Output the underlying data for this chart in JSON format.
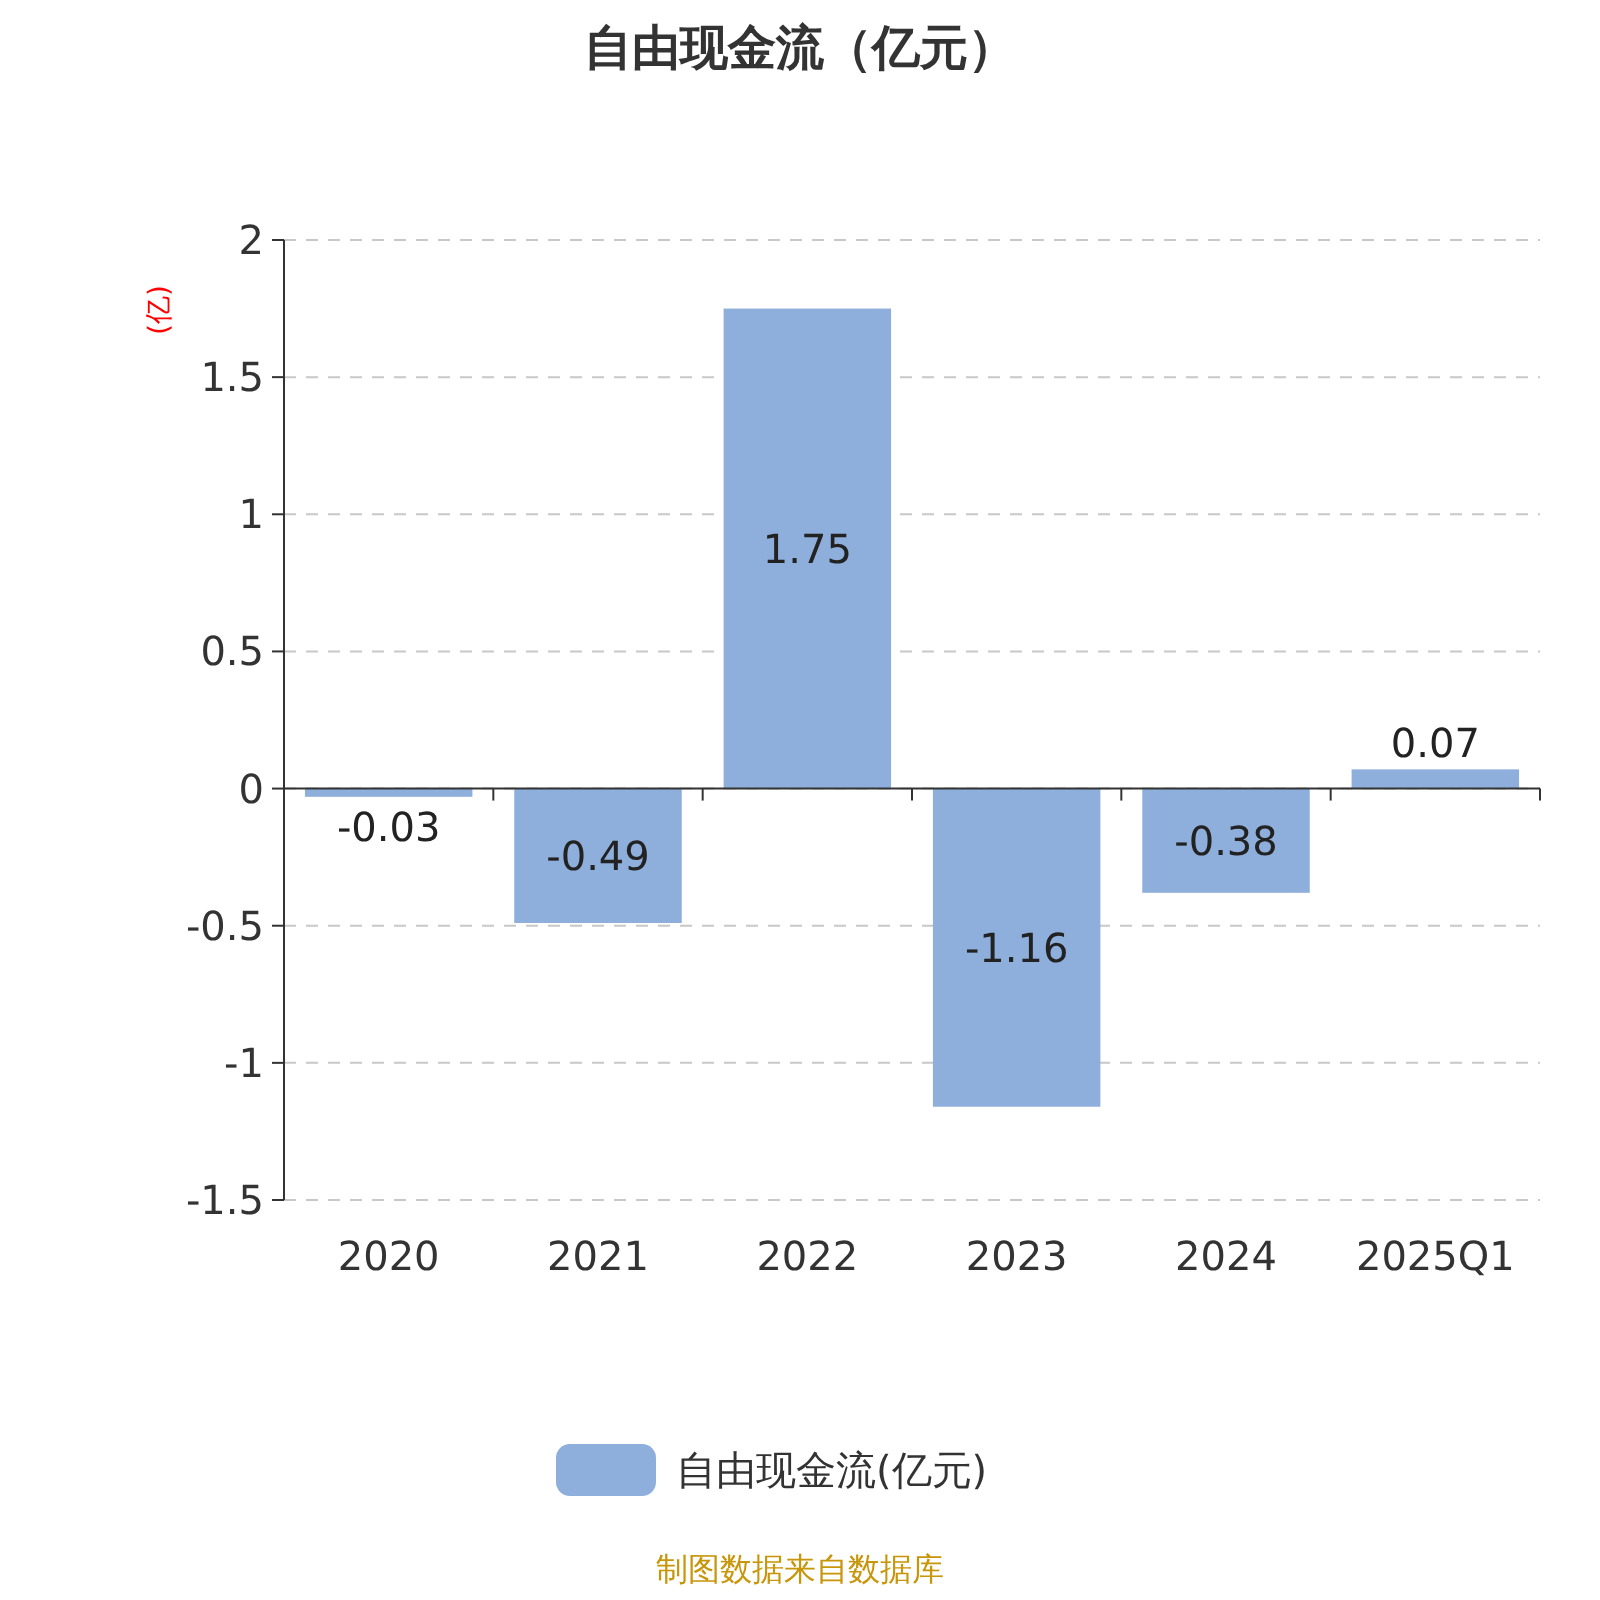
{
  "chart_data": {
    "type": "bar",
    "title": "自由现金流（亿元）",
    "ylabel": "(亿)",
    "categories": [
      "2020",
      "2021",
      "2022",
      "2023",
      "2024",
      "2025Q1"
    ],
    "series": [
      {
        "name": "自由现金流(亿元)",
        "color": "#8eaedb",
        "values": [
          -0.03,
          -0.49,
          1.75,
          -1.16,
          -0.38,
          0.07
        ]
      }
    ],
    "ylim": [
      -1.5,
      2
    ],
    "yticks": [
      {
        "value": -1.5,
        "label": "-1.5"
      },
      {
        "value": -1,
        "label": "-1"
      },
      {
        "value": -0.5,
        "label": "-0.5"
      },
      0,
      0.5,
      1,
      1.5,
      2
    ],
    "grid": "y",
    "legend": "bottom",
    "data_labels": true,
    "annotations": [
      "制图数据来自数据库"
    ]
  }
}
